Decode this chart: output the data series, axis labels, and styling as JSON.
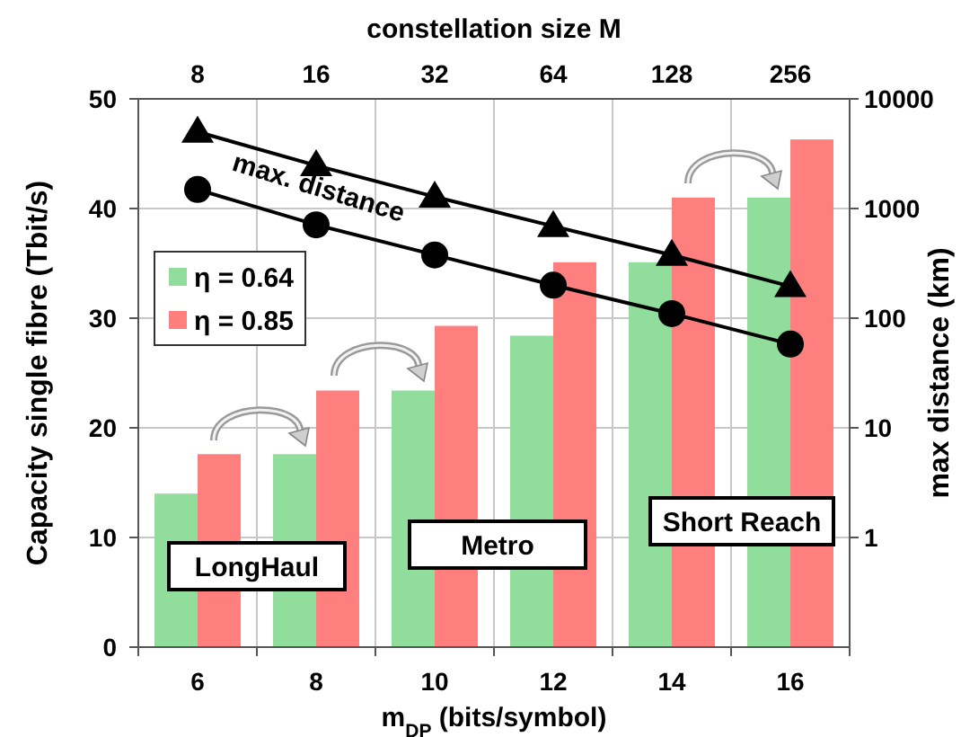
{
  "chart_data": {
    "type": "bar",
    "xlabel": "m$_{DP}$ (bits/symbol)",
    "ylabel": "Capacity single fibre (Tbit/s)",
    "y2label": "max distance (km)",
    "x2label": "constellation size M",
    "x": [
      6,
      8,
      10,
      12,
      14,
      16
    ],
    "xlim": [
      5,
      17
    ],
    "xticks": [
      6,
      8,
      10,
      12,
      14,
      16
    ],
    "ylim": [
      0,
      50
    ],
    "yticks": [
      0,
      10,
      20,
      30,
      40,
      50
    ],
    "y2lim": [
      0.1,
      10000
    ],
    "y2ticks": [
      1,
      10,
      100,
      1000,
      10000
    ],
    "log": "y2",
    "grid": true,
    "legend": "left",
    "series": [
      {
        "name": "η = 0.64",
        "color": "#90dd9c",
        "values": [
          14,
          17.6,
          23.4,
          28.4,
          35.1,
          41
        ]
      },
      {
        "name": "η = 0.85",
        "color": "#ff7f7f",
        "values": [
          17.6,
          23.4,
          29.3,
          35.1,
          41,
          46.3
        ]
      },
      {
        "type": "line",
        "axis": "y2",
        "color": "#000000",
        "marker": "triangle",
        "values": [
          5000,
          2470,
          1280,
          690,
          377,
          195
        ]
      },
      {
        "type": "line",
        "axis": "y2",
        "color": "#000000",
        "marker": "circle",
        "values": [
          1490,
          710,
          377,
          200,
          110,
          58
        ]
      }
    ],
    "annotations": [
      "max. distance",
      "LongHaul",
      "Metro",
      "Short Reach",
      "8",
      "16",
      "32",
      "64",
      "128",
      "256"
    ]
  }
}
